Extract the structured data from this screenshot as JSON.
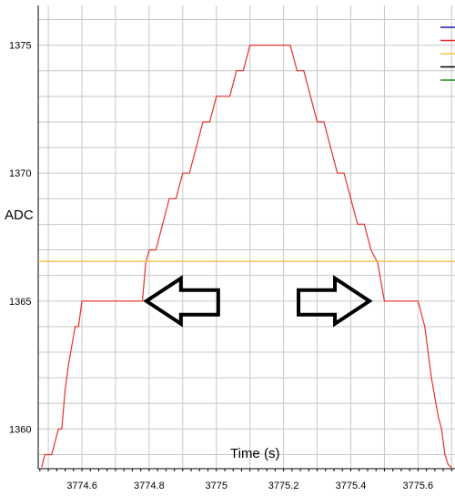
{
  "chart_data": {
    "type": "line",
    "xlabel": "Time (s)",
    "ylabel": "ADC",
    "xlim": [
      3774.47,
      3775.71
    ],
    "ylim": [
      1358.45,
      1376.55
    ],
    "x_ticks": [
      "3774.6",
      "3774.8",
      "3775",
      "3775.2",
      "3775.4",
      "3775.6"
    ],
    "y_ticks": [
      "1375",
      "1370",
      "1365",
      "1360"
    ],
    "grid": true,
    "series": [
      {
        "color": "#e8302a",
        "x": [
          3774.48,
          3774.49,
          3774.51,
          3774.52,
          3774.53,
          3774.54,
          3774.55,
          3774.56,
          3774.58,
          3774.59,
          3774.6,
          3774.62,
          3774.64,
          3774.66,
          3774.68,
          3774.7,
          3774.72,
          3774.74,
          3774.76,
          3774.78,
          3774.79,
          3774.8,
          3774.82,
          3774.84,
          3774.86,
          3774.88,
          3774.9,
          3774.92,
          3774.94,
          3774.96,
          3774.98,
          3775.0,
          3775.02,
          3775.04,
          3775.06,
          3775.08,
          3775.1,
          3775.12,
          3775.14,
          3775.16,
          3775.18,
          3775.2,
          3775.22,
          3775.24,
          3775.26,
          3775.28,
          3775.3,
          3775.32,
          3775.34,
          3775.36,
          3775.38,
          3775.4,
          3775.42,
          3775.44,
          3775.46,
          3775.48,
          3775.5,
          3775.52,
          3775.54,
          3775.56,
          3775.58,
          3775.6,
          3775.62,
          3775.64,
          3775.66,
          3775.67,
          3775.68,
          3775.69,
          3775.7
        ],
        "y": [
          1358.5,
          1359,
          1359,
          1359.5,
          1360,
          1360,
          1361.5,
          1362.5,
          1364,
          1364,
          1365,
          1365,
          1365,
          1365,
          1365,
          1365,
          1365,
          1365,
          1365,
          1365,
          1366.5,
          1367,
          1367,
          1368,
          1369,
          1369,
          1370,
          1370,
          1371,
          1372,
          1372,
          1373,
          1373,
          1373,
          1374,
          1374,
          1375,
          1375,
          1375,
          1375,
          1375,
          1375,
          1375,
          1374,
          1374,
          1373,
          1372,
          1372,
          1371,
          1370,
          1370,
          1369,
          1368,
          1368,
          1367,
          1366.5,
          1365,
          1365,
          1365,
          1365,
          1365,
          1365,
          1364,
          1362,
          1360.5,
          1360,
          1359,
          1358.6,
          1358.5
        ]
      },
      {
        "color": "#f5c243",
        "x": [
          3774.47,
          3775.71
        ],
        "y": [
          1366.55,
          1366.55
        ]
      }
    ],
    "legend": {
      "placement": "top-right",
      "colors": [
        "#1a1aa0",
        "#e8302a",
        "#f5c243",
        "#000000",
        "#1a8a1a"
      ]
    },
    "annotations": [
      {
        "type": "arrow-left-icon",
        "x": 3774.9,
        "y": 1365
      },
      {
        "type": "arrow-right-icon",
        "x": 3775.35,
        "y": 1365
      }
    ]
  }
}
